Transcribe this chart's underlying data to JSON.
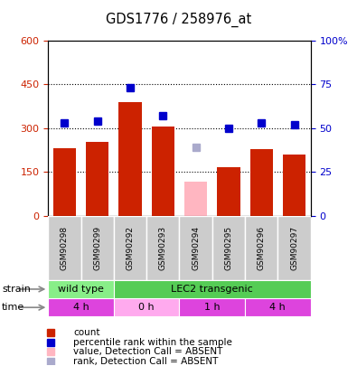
{
  "title": "GDS1776 / 258976_at",
  "samples": [
    "GSM90298",
    "GSM90299",
    "GSM90292",
    "GSM90293",
    "GSM90294",
    "GSM90295",
    "GSM90296",
    "GSM90297"
  ],
  "counts": [
    230,
    252,
    390,
    305,
    null,
    168,
    228,
    210
  ],
  "ranks": [
    53,
    54,
    73,
    57,
    null,
    50,
    53,
    52
  ],
  "absent_count": [
    null,
    null,
    null,
    null,
    118,
    null,
    null,
    null
  ],
  "absent_rank": [
    null,
    null,
    null,
    null,
    39,
    null,
    null,
    null
  ],
  "ylim_left": [
    0,
    600
  ],
  "ylim_right": [
    0,
    100
  ],
  "yticks_left": [
    0,
    150,
    300,
    450,
    600
  ],
  "yticks_right": [
    0,
    25,
    50,
    75,
    100
  ],
  "ytick_labels_left": [
    "0",
    "150",
    "300",
    "450",
    "600"
  ],
  "ytick_labels_right": [
    "0",
    "25",
    "50",
    "75",
    "100%"
  ],
  "bar_color": "#CC2200",
  "rank_color": "#0000CC",
  "absent_bar_color": "#FFB6C1",
  "absent_rank_color": "#AAAACC",
  "tick_label_color_left": "#CC2200",
  "tick_label_color_right": "#0000CC",
  "strain_spans": [
    {
      "text": "wild type",
      "start": 0,
      "end": 2,
      "color": "#88EE88"
    },
    {
      "text": "LEC2 transgenic",
      "start": 2,
      "end": 8,
      "color": "#55CC55"
    }
  ],
  "time_spans": [
    {
      "text": "4 h",
      "start": 0,
      "end": 2,
      "color": "#DD44DD"
    },
    {
      "text": "0 h",
      "start": 2,
      "end": 4,
      "color": "#FFAAEE"
    },
    {
      "text": "1 h",
      "start": 4,
      "end": 6,
      "color": "#DD44DD"
    },
    {
      "text": "4 h",
      "start": 6,
      "end": 8,
      "color": "#DD44DD"
    }
  ],
  "legend_items": [
    {
      "color": "#CC2200",
      "label": "count"
    },
    {
      "color": "#0000CC",
      "label": "percentile rank within the sample"
    },
    {
      "color": "#FFB6C1",
      "label": "value, Detection Call = ABSENT"
    },
    {
      "color": "#AAAACC",
      "label": "rank, Detection Call = ABSENT"
    }
  ]
}
